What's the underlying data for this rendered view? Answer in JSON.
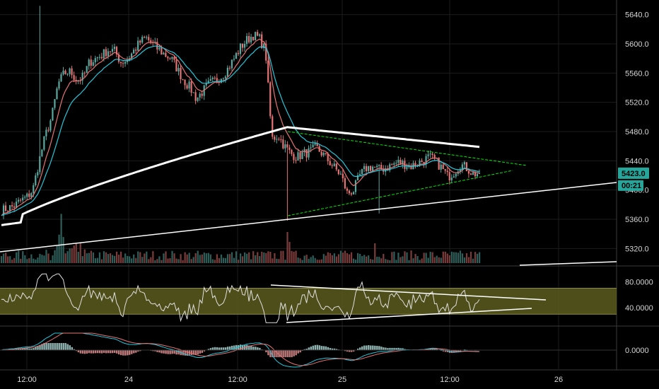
{
  "chart_data": {
    "type": "candlestick",
    "main": {
      "y_ticks": [
        "5640.0",
        "5600.0",
        "5560.0",
        "5520.0",
        "5480.0",
        "5440.0",
        "5400.0",
        "5360.0",
        "5320.0"
      ],
      "ylim": [
        5300,
        5660
      ],
      "last_price_label": "5423.0",
      "countdown_label": "00:21",
      "ohlc_keypoints": [
        5372,
        5375,
        5378,
        5385,
        5390,
        5400,
        5440,
        5475,
        5500,
        5545,
        5560,
        5562,
        5550,
        5555,
        5575,
        5580,
        5585,
        5592,
        5590,
        5575,
        5578,
        5590,
        5602,
        5608,
        5600,
        5592,
        5585,
        5580,
        5565,
        5550,
        5540,
        5525,
        5535,
        5545,
        5550,
        5556,
        5566,
        5580,
        5595,
        5605,
        5612,
        5608,
        5590,
        5470,
        5475,
        5460,
        5450,
        5445,
        5450,
        5452,
        5458,
        5450,
        5440,
        5430,
        5420,
        5395,
        5400,
        5420,
        5430,
        5432,
        5428,
        5430,
        5434,
        5438,
        5436,
        5432,
        5436,
        5440,
        5445,
        5440,
        5430,
        5418,
        5425,
        5435,
        5430,
        5422,
        5423
      ]
    },
    "rsi": {
      "y_ticks": [
        "80.0000",
        "40.0000"
      ],
      "ylim": [
        15,
        100
      ],
      "band": [
        30,
        70
      ]
    },
    "macd": {
      "y_ticks": [
        "0.0000"
      ]
    },
    "x_ticks": [
      "12:00",
      "24",
      "12:00",
      "25",
      "12:00",
      "26"
    ],
    "colors": {
      "background": "#000000",
      "grid": "#1c1c1c",
      "up": "#5aa9a0",
      "down": "#e57373",
      "ema_fast": "#e57373",
      "ema_slow": "#26c6da",
      "ma_long": "#ffffff",
      "trendline": "#00e600",
      "rsi_band": "#5c5c1f",
      "tag_price": "#26a69a",
      "tag_time": "#26a69a"
    }
  }
}
